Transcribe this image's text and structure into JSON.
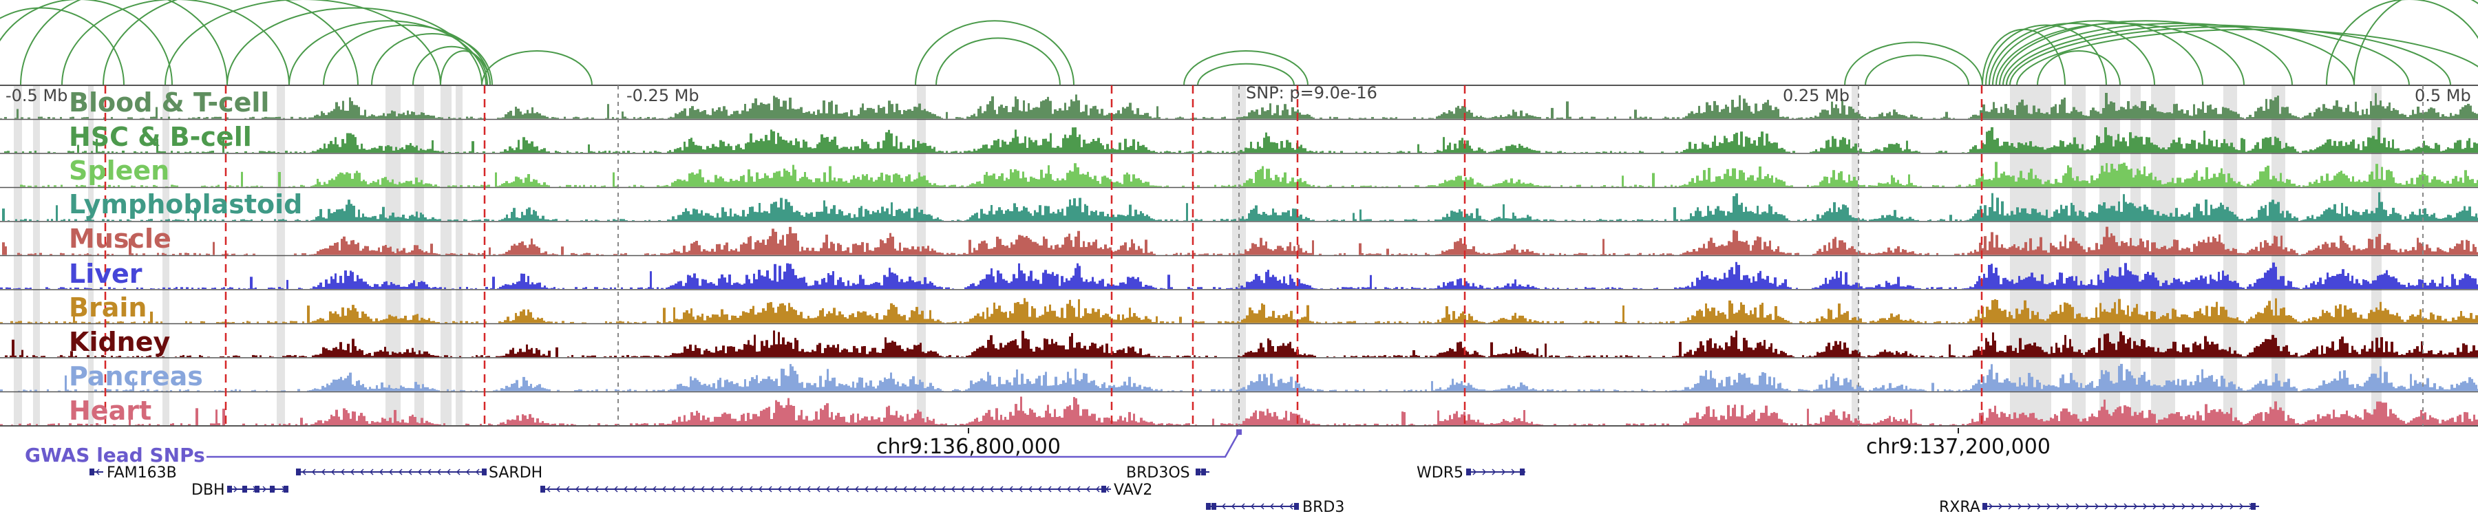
{
  "ruler": {
    "left_tick": "-0.5 Mb",
    "minus_quarter_tick": "-0.25 Mb",
    "plus_quarter_tick": "0.25 Mb",
    "right_tick": "0.5 Mb",
    "snp_label": "SNP: p=9.0e-16"
  },
  "tracks": [
    {
      "name": "Blood & T-cell",
      "color": "#5f8f5f"
    },
    {
      "name": "HSC & B-cell",
      "color": "#4d9a4d"
    },
    {
      "name": "Spleen",
      "color": "#77c95f"
    },
    {
      "name": "Lymphoblastoid",
      "color": "#3f9a86"
    },
    {
      "name": "Muscle",
      "color": "#c0605a"
    },
    {
      "name": "Liver",
      "color": "#4646d8"
    },
    {
      "name": "Brain",
      "color": "#c08a25"
    },
    {
      "name": "Kidney",
      "color": "#6a0b0b"
    },
    {
      "name": "Pancreas",
      "color": "#88a6dc"
    },
    {
      "name": "Heart",
      "color": "#d4697a"
    }
  ],
  "gwas": {
    "label": "GWAS lead SNPs",
    "color": "#6a5acd"
  },
  "coordinates": {
    "left": "chr9:136,800,000",
    "right": "chr9:137,200,000"
  },
  "genes": [
    {
      "name": "FAM163B"
    },
    {
      "name": "DBH"
    },
    {
      "name": "SARDH"
    },
    {
      "name": "VAV2"
    },
    {
      "name": "BRD3OS"
    },
    {
      "name": "BRD3"
    },
    {
      "name": "WDR5"
    },
    {
      "name": "RXRA"
    }
  ],
  "colors": {
    "arc": "#4a9a4a",
    "gene": "#2a2a8a",
    "snp_line": "#d62728",
    "highlight": "#e4e4e4",
    "divider": "#555555"
  }
}
